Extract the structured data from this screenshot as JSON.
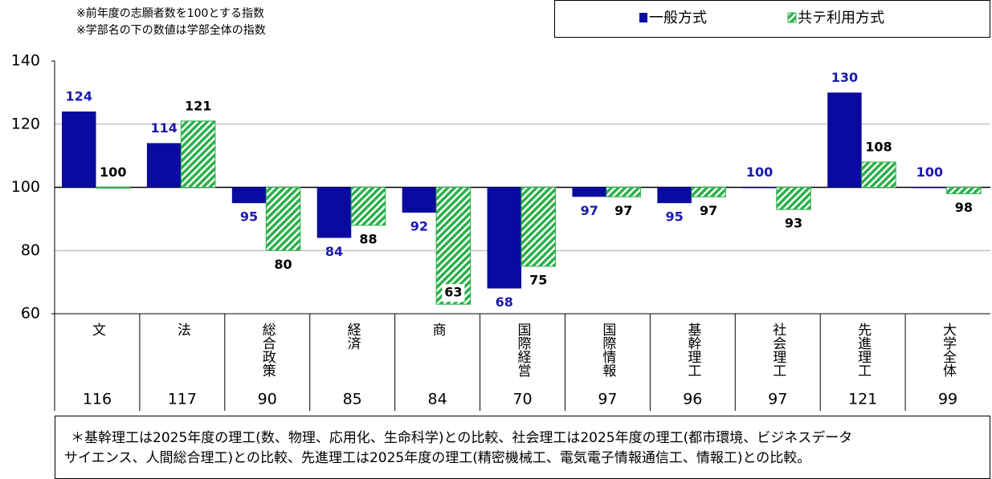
{
  "chart_data": {
    "type": "bar",
    "notes": [
      "※前年度の志願者数を100とする指数",
      "※学部名の下の数値は学部全体の指数"
    ],
    "categories": [
      "文",
      "法",
      "総合政策",
      "経済",
      "商",
      "国際経営",
      "国際情報",
      "基幹理工",
      "社会理工",
      "先進理工",
      "大学全体"
    ],
    "totals": [
      116,
      117,
      90,
      85,
      84,
      70,
      97,
      96,
      97,
      121,
      99
    ],
    "series": [
      {
        "name": "一般方式",
        "color": "#0a0aa0",
        "label_color": "#1a1ab0",
        "values": [
          124,
          114,
          95,
          84,
          92,
          68,
          97,
          95,
          100,
          130,
          100
        ]
      },
      {
        "name": "共テ利用方式",
        "color": "#2bb04a",
        "label_color": "#000000",
        "values": [
          100,
          121,
          80,
          88,
          63,
          75,
          97,
          97,
          93,
          108,
          98
        ]
      }
    ],
    "baseline": 100,
    "ylim": [
      60,
      140
    ],
    "yticks": [
      60,
      80,
      100,
      120,
      140
    ],
    "grid": true,
    "legend": "top-right",
    "footnote": [
      "＊基幹理工は2025年度の理工(数、物理、応用化、生命科学)との比較、社会理工は2025年度の理工(都市環境、ビジネスデータ",
      "サイエンス、人間総合理工)との比較、先進理工は2025年度の理工(精密機械工、電気電子情報通信工、情報工)との比較。"
    ]
  }
}
